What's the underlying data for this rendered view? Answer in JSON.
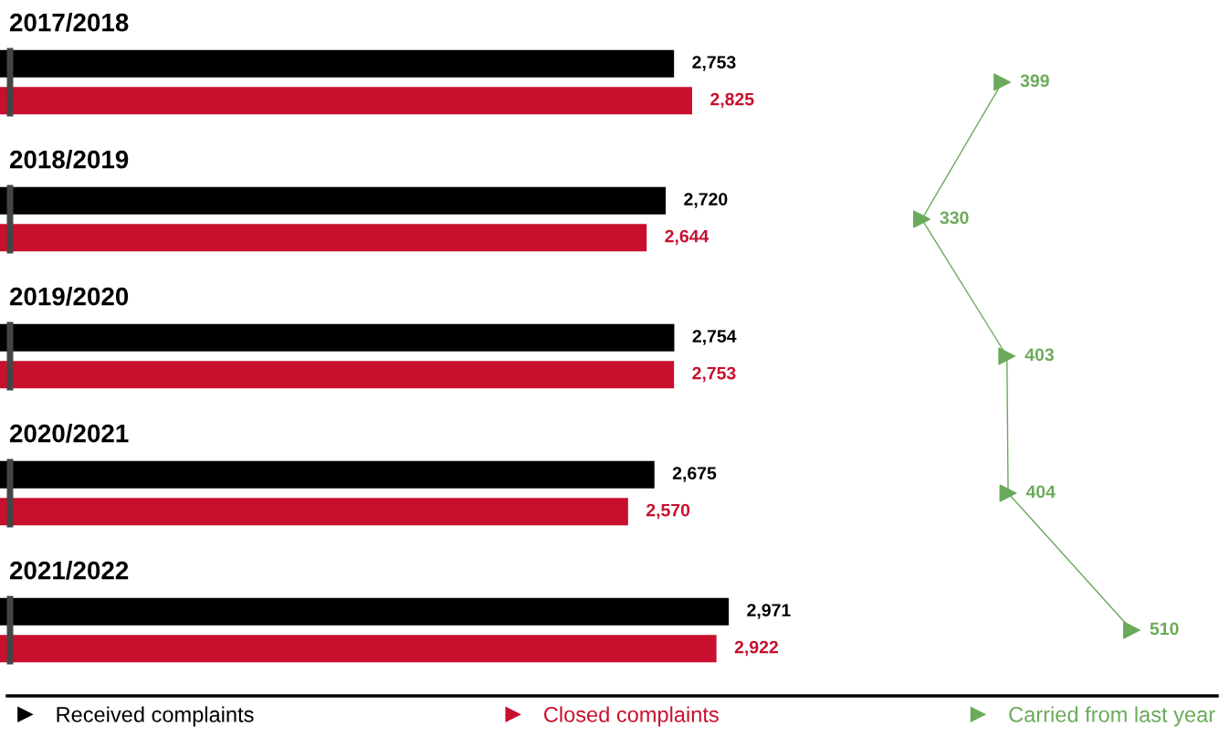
{
  "chart_data": [
    {
      "type": "bar",
      "orientation": "horizontal",
      "categories": [
        "2017/2018",
        "2018/2019",
        "2019/2020",
        "2020/2021",
        "2021/2022"
      ],
      "series": [
        {
          "name": "Received complaints",
          "color": "#000000",
          "values": [
            2753,
            2720,
            2754,
            2675,
            2971
          ],
          "value_labels": [
            "2,753",
            "2,720",
            "2,754",
            "2,675",
            "2,971"
          ]
        },
        {
          "name": "Closed complaints",
          "color": "#c8102e",
          "values": [
            2825,
            2644,
            2753,
            2570,
            2922
          ],
          "value_labels": [
            "2,825",
            "2,644",
            "2,753",
            "2,570",
            "2,922"
          ]
        }
      ],
      "legend": "bottom"
    },
    {
      "type": "line",
      "orientation": "horizontal",
      "categories": [
        null,
        null,
        null,
        null,
        null
      ],
      "series": [
        {
          "name": "Carried from last year",
          "color": "#6aaa5a",
          "marker": "triangle",
          "values": [
            399,
            330,
            403,
            404,
            510
          ],
          "value_labels": [
            "399",
            "330",
            "403",
            "404",
            "510"
          ]
        }
      ],
      "legend": "bottom"
    }
  ]
}
